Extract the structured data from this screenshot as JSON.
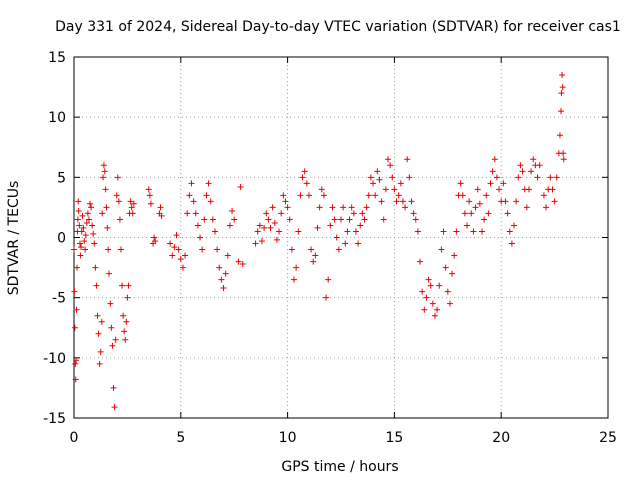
{
  "chart_data": {
    "type": "scatter",
    "title": "Day 331 of 2024, Sidereal Day-to-day VTEC variation (SDTVAR) for receiver cas1",
    "xlabel": "GPS time / hours",
    "ylabel": "SDTVAR / TECUs",
    "xlim": [
      0,
      25
    ],
    "ylim": [
      -15,
      15
    ],
    "xticks": [
      0,
      5,
      10,
      15,
      20,
      25
    ],
    "yticks": [
      -15,
      -10,
      -5,
      0,
      5,
      10,
      15
    ],
    "grid": true,
    "marker": "+",
    "color": "#ee0000",
    "series": [
      {
        "name": "SDTVAR",
        "points": [
          [
            0.0,
            -1.0
          ],
          [
            0.02,
            -4.5
          ],
          [
            0.04,
            -7.5
          ],
          [
            0.06,
            -10.5
          ],
          [
            0.08,
            -11.8
          ],
          [
            0.1,
            -10.2
          ],
          [
            0.12,
            -6.0
          ],
          [
            0.14,
            -2.5
          ],
          [
            0.16,
            0.5
          ],
          [
            0.18,
            1.5
          ],
          [
            0.2,
            3.0
          ],
          [
            0.22,
            2.2
          ],
          [
            0.25,
            1.0
          ],
          [
            0.28,
            -0.5
          ],
          [
            0.3,
            -1.5
          ],
          [
            0.33,
            -0.8
          ],
          [
            0.36,
            0.5
          ],
          [
            0.4,
            1.8
          ],
          [
            0.44,
            0.8
          ],
          [
            0.48,
            -0.3
          ],
          [
            0.52,
            -1.0
          ],
          [
            0.55,
            0.2
          ],
          [
            0.6,
            1.2
          ],
          [
            0.65,
            2.0
          ],
          [
            0.7,
            1.5
          ],
          [
            0.75,
            2.8
          ],
          [
            0.8,
            2.5
          ],
          [
            0.85,
            1.0
          ],
          [
            0.9,
            0.3
          ],
          [
            0.95,
            -0.5
          ],
          [
            1.0,
            -2.5
          ],
          [
            1.05,
            -4.0
          ],
          [
            1.1,
            -6.5
          ],
          [
            1.15,
            -8.0
          ],
          [
            1.2,
            -10.5
          ],
          [
            1.25,
            -9.5
          ],
          [
            1.3,
            -7.0
          ],
          [
            1.32,
            2.0
          ],
          [
            1.36,
            5.0
          ],
          [
            1.4,
            6.0
          ],
          [
            1.44,
            5.5
          ],
          [
            1.48,
            4.0
          ],
          [
            1.52,
            2.5
          ],
          [
            1.56,
            0.8
          ],
          [
            1.6,
            -1.0
          ],
          [
            1.64,
            -3.0
          ],
          [
            1.7,
            -5.5
          ],
          [
            1.75,
            -7.5
          ],
          [
            1.8,
            -9.0
          ],
          [
            1.85,
            -12.5
          ],
          [
            1.9,
            -14.1
          ],
          [
            1.95,
            -8.5
          ],
          [
            2.0,
            3.5
          ],
          [
            2.05,
            5.0
          ],
          [
            2.1,
            3.0
          ],
          [
            2.15,
            1.5
          ],
          [
            2.2,
            -1.0
          ],
          [
            2.25,
            -4.0
          ],
          [
            2.3,
            -6.5
          ],
          [
            2.35,
            -7.8
          ],
          [
            2.4,
            -8.5
          ],
          [
            2.45,
            -7.0
          ],
          [
            2.5,
            -5.0
          ],
          [
            2.55,
            -4.0
          ],
          [
            2.6,
            2.0
          ],
          [
            2.65,
            3.0
          ],
          [
            2.7,
            2.5
          ],
          [
            2.75,
            2.0
          ],
          [
            2.8,
            2.8
          ],
          [
            3.5,
            4.0
          ],
          [
            3.55,
            3.5
          ],
          [
            3.6,
            2.8
          ],
          [
            3.7,
            -0.5
          ],
          [
            3.75,
            0.0
          ],
          [
            3.8,
            -0.3
          ],
          [
            4.0,
            2.0
          ],
          [
            4.05,
            2.5
          ],
          [
            4.1,
            1.8
          ],
          [
            4.5,
            -0.5
          ],
          [
            4.6,
            -1.5
          ],
          [
            4.7,
            -0.8
          ],
          [
            4.8,
            0.2
          ],
          [
            4.9,
            -1.0
          ],
          [
            5.0,
            -1.8
          ],
          [
            5.1,
            -2.5
          ],
          [
            5.2,
            -1.5
          ],
          [
            5.3,
            2.0
          ],
          [
            5.4,
            3.5
          ],
          [
            5.5,
            4.5
          ],
          [
            5.6,
            3.0
          ],
          [
            5.7,
            2.0
          ],
          [
            5.8,
            1.0
          ],
          [
            5.9,
            0.0
          ],
          [
            6.0,
            -1.0
          ],
          [
            6.1,
            1.5
          ],
          [
            6.2,
            3.5
          ],
          [
            6.3,
            4.5
          ],
          [
            6.4,
            3.0
          ],
          [
            6.5,
            1.5
          ],
          [
            6.6,
            0.5
          ],
          [
            6.7,
            -1.0
          ],
          [
            6.8,
            -2.5
          ],
          [
            6.9,
            -3.5
          ],
          [
            7.0,
            -4.2
          ],
          [
            7.1,
            -3.0
          ],
          [
            7.2,
            -1.5
          ],
          [
            7.3,
            1.0
          ],
          [
            7.4,
            2.2
          ],
          [
            7.5,
            1.5
          ],
          [
            7.7,
            -2.0
          ],
          [
            7.8,
            4.2
          ],
          [
            7.9,
            -2.2
          ],
          [
            8.5,
            -0.5
          ],
          [
            8.6,
            0.5
          ],
          [
            8.7,
            1.0
          ],
          [
            8.8,
            -0.3
          ],
          [
            8.9,
            0.8
          ],
          [
            9.0,
            2.0
          ],
          [
            9.1,
            1.5
          ],
          [
            9.2,
            0.8
          ],
          [
            9.3,
            2.5
          ],
          [
            9.4,
            1.2
          ],
          [
            9.5,
            -0.2
          ],
          [
            9.6,
            0.5
          ],
          [
            9.7,
            2.0
          ],
          [
            9.8,
            3.5
          ],
          [
            9.9,
            3.0
          ],
          [
            10.0,
            2.5
          ],
          [
            10.1,
            1.5
          ],
          [
            10.2,
            -1.0
          ],
          [
            10.3,
            -3.5
          ],
          [
            10.4,
            -2.5
          ],
          [
            10.5,
            0.5
          ],
          [
            10.6,
            3.5
          ],
          [
            10.7,
            5.0
          ],
          [
            10.8,
            5.5
          ],
          [
            10.9,
            4.5
          ],
          [
            11.0,
            3.5
          ],
          [
            11.1,
            -1.0
          ],
          [
            11.2,
            -2.0
          ],
          [
            11.3,
            -1.5
          ],
          [
            11.4,
            0.8
          ],
          [
            11.5,
            2.5
          ],
          [
            11.6,
            4.0
          ],
          [
            11.7,
            3.5
          ],
          [
            11.8,
            -5.0
          ],
          [
            11.9,
            -3.5
          ],
          [
            12.0,
            1.0
          ],
          [
            12.1,
            2.5
          ],
          [
            12.2,
            1.5
          ],
          [
            12.3,
            0.0
          ],
          [
            12.4,
            -1.0
          ],
          [
            12.5,
            1.5
          ],
          [
            12.6,
            2.5
          ],
          [
            12.7,
            -0.5
          ],
          [
            12.8,
            0.5
          ],
          [
            12.9,
            1.5
          ],
          [
            13.0,
            2.5
          ],
          [
            13.1,
            2.0
          ],
          [
            13.2,
            0.5
          ],
          [
            13.3,
            -0.5
          ],
          [
            13.4,
            1.0
          ],
          [
            13.5,
            2.0
          ],
          [
            13.6,
            1.5
          ],
          [
            13.7,
            2.5
          ],
          [
            13.8,
            3.5
          ],
          [
            13.9,
            5.0
          ],
          [
            14.0,
            4.5
          ],
          [
            14.1,
            3.5
          ],
          [
            14.2,
            5.5
          ],
          [
            14.3,
            4.8
          ],
          [
            14.4,
            3.0
          ],
          [
            14.5,
            1.5
          ],
          [
            14.6,
            4.0
          ],
          [
            14.7,
            6.5
          ],
          [
            14.8,
            6.0
          ],
          [
            14.9,
            5.0
          ],
          [
            15.0,
            4.0
          ],
          [
            15.1,
            3.0
          ],
          [
            15.2,
            3.5
          ],
          [
            15.3,
            4.5
          ],
          [
            15.4,
            3.0
          ],
          [
            15.5,
            2.5
          ],
          [
            15.6,
            6.5
          ],
          [
            15.7,
            5.0
          ],
          [
            15.8,
            3.0
          ],
          [
            15.9,
            2.0
          ],
          [
            16.0,
            1.5
          ],
          [
            16.1,
            0.5
          ],
          [
            16.2,
            -2.0
          ],
          [
            16.3,
            -4.5
          ],
          [
            16.4,
            -6.0
          ],
          [
            16.5,
            -5.0
          ],
          [
            16.6,
            -3.5
          ],
          [
            16.7,
            -4.0
          ],
          [
            16.8,
            -5.5
          ],
          [
            16.9,
            -6.5
          ],
          [
            17.0,
            -6.0
          ],
          [
            17.1,
            -4.0
          ],
          [
            17.2,
            -1.0
          ],
          [
            17.3,
            0.5
          ],
          [
            17.4,
            -2.5
          ],
          [
            17.5,
            -4.5
          ],
          [
            17.6,
            -5.5
          ],
          [
            17.7,
            -3.0
          ],
          [
            17.8,
            -1.5
          ],
          [
            17.9,
            0.5
          ],
          [
            18.0,
            3.5
          ],
          [
            18.1,
            4.5
          ],
          [
            18.2,
            3.5
          ],
          [
            18.3,
            2.0
          ],
          [
            18.4,
            1.0
          ],
          [
            18.5,
            3.0
          ],
          [
            18.6,
            2.0
          ],
          [
            18.7,
            0.5
          ],
          [
            18.8,
            2.5
          ],
          [
            18.9,
            4.0
          ],
          [
            19.0,
            2.8
          ],
          [
            19.1,
            0.5
          ],
          [
            19.2,
            1.5
          ],
          [
            19.3,
            3.5
          ],
          [
            19.4,
            2.0
          ],
          [
            19.5,
            4.5
          ],
          [
            19.6,
            5.5
          ],
          [
            19.7,
            6.5
          ],
          [
            19.8,
            5.0
          ],
          [
            19.9,
            4.0
          ],
          [
            20.0,
            3.0
          ],
          [
            20.1,
            4.5
          ],
          [
            20.2,
            3.0
          ],
          [
            20.3,
            2.0
          ],
          [
            20.4,
            0.5
          ],
          [
            20.5,
            -0.5
          ],
          [
            20.6,
            1.0
          ],
          [
            20.7,
            3.0
          ],
          [
            20.8,
            5.0
          ],
          [
            20.9,
            6.0
          ],
          [
            21.0,
            5.5
          ],
          [
            21.1,
            4.0
          ],
          [
            21.2,
            2.5
          ],
          [
            21.3,
            4.0
          ],
          [
            21.4,
            5.5
          ],
          [
            21.5,
            6.5
          ],
          [
            21.6,
            6.0
          ],
          [
            21.7,
            5.0
          ],
          [
            21.8,
            6.0
          ],
          [
            22.0,
            3.5
          ],
          [
            22.1,
            2.5
          ],
          [
            22.2,
            4.0
          ],
          [
            22.3,
            5.0
          ],
          [
            22.4,
            4.0
          ],
          [
            22.5,
            3.0
          ],
          [
            22.6,
            5.0
          ],
          [
            22.7,
            7.0
          ],
          [
            22.75,
            8.5
          ],
          [
            22.8,
            10.5
          ],
          [
            22.82,
            12.0
          ],
          [
            22.85,
            13.5
          ],
          [
            22.88,
            12.5
          ],
          [
            22.9,
            7.0
          ],
          [
            22.93,
            6.5
          ]
        ]
      }
    ]
  }
}
